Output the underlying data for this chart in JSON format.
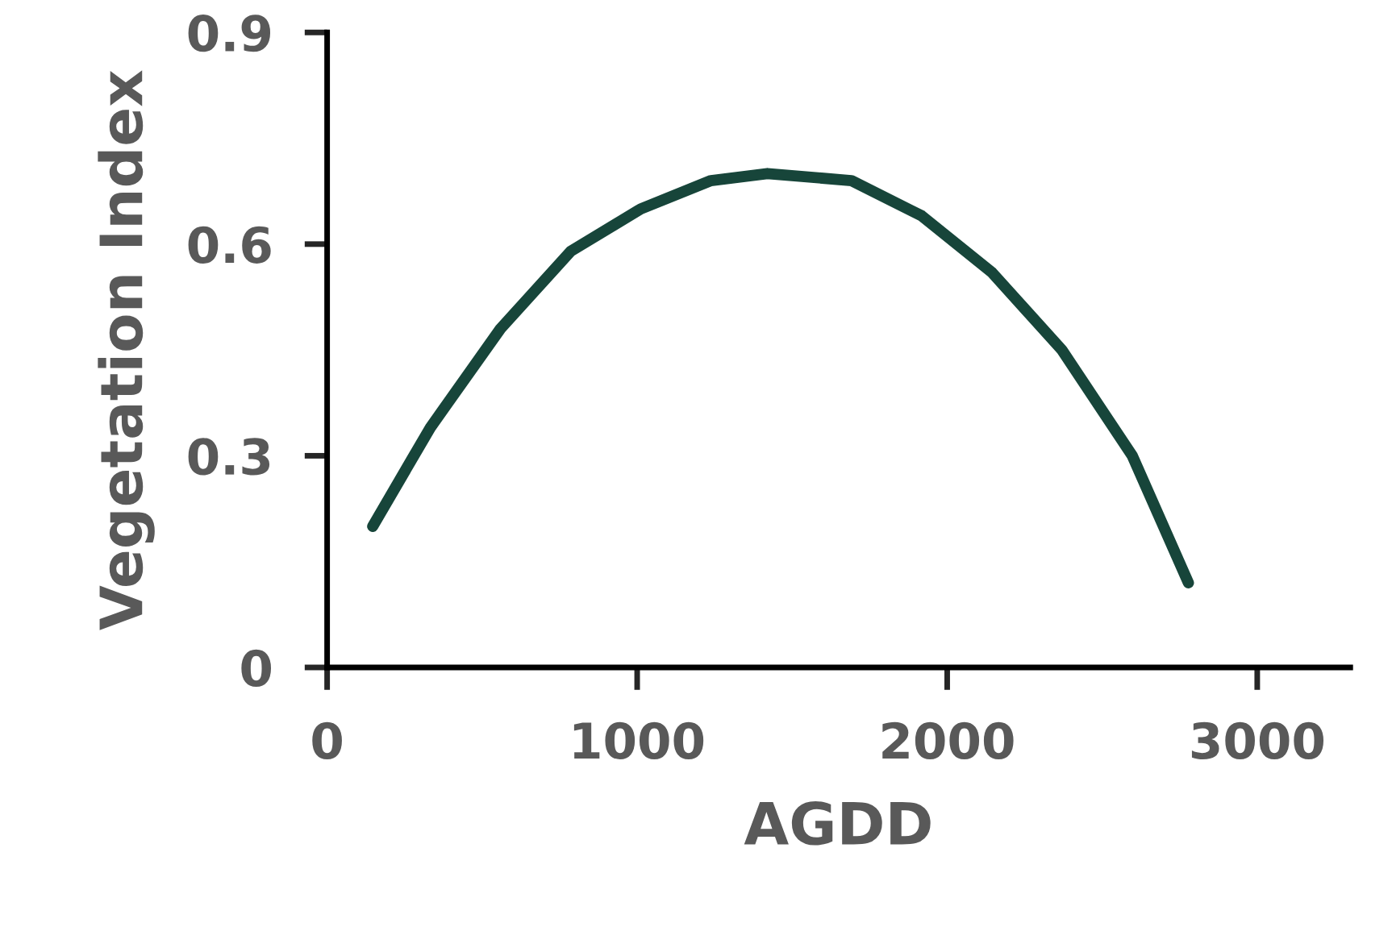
{
  "chart_data": {
    "type": "line",
    "xlabel": "AGDD",
    "ylabel": "Vegetation Index",
    "xlim": [
      0,
      3300
    ],
    "xticks": [
      0,
      1000,
      2000,
      3000
    ],
    "ylim": [
      0,
      0.9
    ],
    "yticks": [
      0,
      0.3,
      0.6,
      0.9
    ],
    "grid": false,
    "marker": "none",
    "line_style": "solid",
    "series": [
      {
        "color": "#17453a",
        "x": [
          147,
          333,
          559,
          786,
          1012,
          1238,
          1420,
          1691,
          1918,
          2144,
          2370,
          2597,
          2778
        ],
        "values": [
          0.2,
          0.34,
          0.48,
          0.59,
          0.65,
          0.69,
          0.7,
          0.69,
          0.64,
          0.56,
          0.45,
          0.3,
          0.12
        ]
      }
    ]
  }
}
